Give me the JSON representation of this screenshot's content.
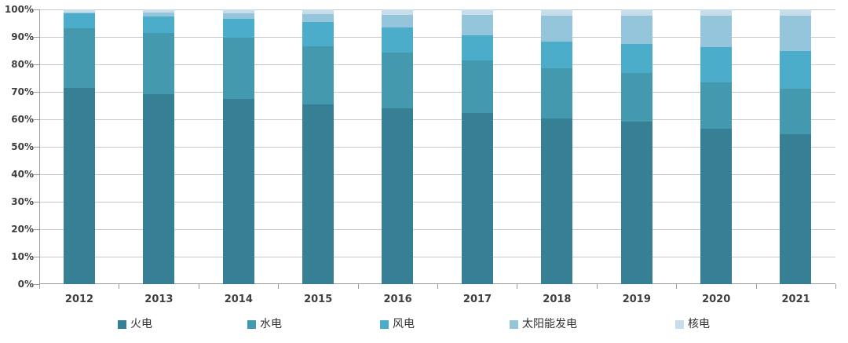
{
  "chart_data": {
    "type": "bar",
    "subtype": "stacked-100-percent",
    "title": "",
    "xlabel": "",
    "ylabel": "",
    "categories": [
      "2012",
      "2013",
      "2014",
      "2015",
      "2016",
      "2017",
      "2018",
      "2019",
      "2020",
      "2021"
    ],
    "series": [
      {
        "name": "火电",
        "color": "#367F94",
        "values": [
          71.5,
          69.2,
          67.3,
          65.7,
          64.0,
          62.2,
          60.2,
          59.2,
          56.6,
          54.6
        ]
      },
      {
        "name": "水电",
        "color": "#4599AF",
        "values": [
          21.7,
          22.5,
          22.2,
          21.2,
          20.2,
          19.2,
          18.5,
          17.8,
          16.8,
          16.4
        ]
      },
      {
        "name": "风电",
        "color": "#4BADC9",
        "values": [
          5.4,
          6.0,
          7.0,
          8.7,
          9.0,
          9.2,
          9.7,
          10.4,
          12.8,
          13.8
        ]
      },
      {
        "name": "太阳能发电",
        "color": "#95C5DA",
        "values": [
          0.3,
          1.3,
          1.8,
          2.9,
          4.7,
          7.3,
          9.2,
          10.2,
          11.5,
          12.9
        ]
      },
      {
        "name": "核电",
        "color": "#C7DDE9",
        "values": [
          1.1,
          1.2,
          1.5,
          1.8,
          2.0,
          2.0,
          2.4,
          2.4,
          2.3,
          2.2
        ]
      }
    ],
    "y_ticks": [
      "0%",
      "10%",
      "20%",
      "30%",
      "40%",
      "50%",
      "60%",
      "70%",
      "80%",
      "90%",
      "100%"
    ],
    "ylim": [
      0,
      100
    ],
    "grid": true,
    "legend_position": "bottom",
    "colors": {
      "gridline": "#c9c7c7",
      "axis": "#9b9b9b",
      "axis_text": "#3f3f3f",
      "legend_text": "#303030",
      "background": "#ffffff"
    }
  }
}
